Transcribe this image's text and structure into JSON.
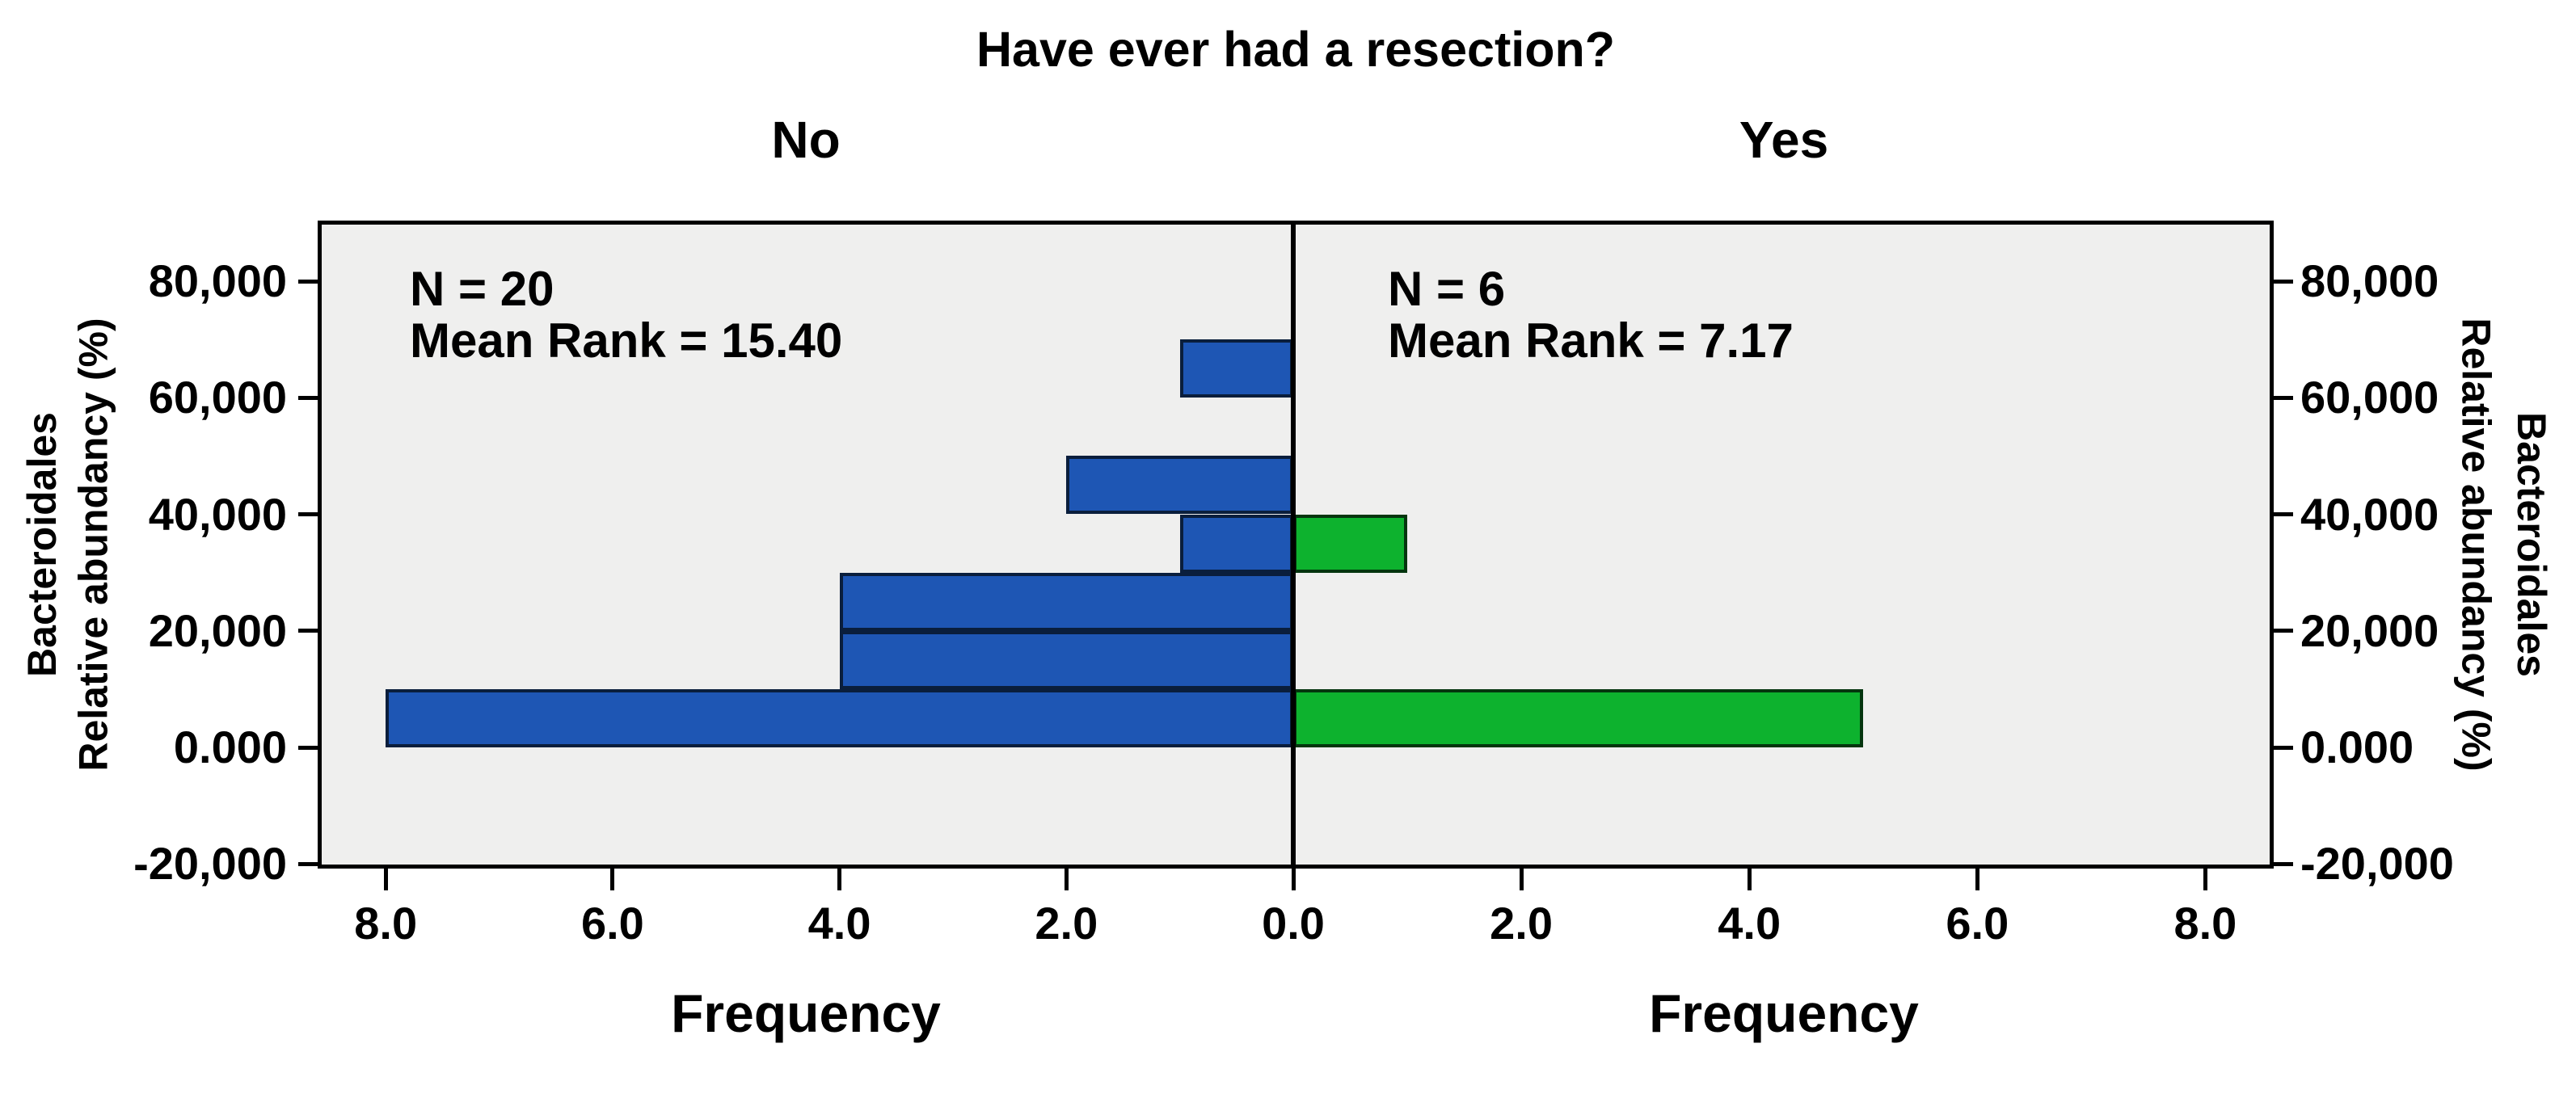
{
  "title": "Have ever had a resection?",
  "panels": {
    "left_header": "No",
    "right_header": "Yes"
  },
  "annotations": {
    "left": {
      "n": "N = 20",
      "mean_rank": "Mean Rank = 15.40"
    },
    "right": {
      "n": "N = 6",
      "mean_rank": "Mean Rank = 7.17"
    }
  },
  "axes": {
    "left_outer_title": "Bacteroidales",
    "left_inner_title": "Relative abundancy (%)",
    "right_inner_title": "Relative abundancy (%)",
    "right_outer_title": "Bacteroidales",
    "frequency_left": "Frequency",
    "frequency_right": "Frequency"
  },
  "colors": {
    "page_background": "#ffffff",
    "plot_background": "#efefee",
    "frame": "#000000",
    "no_bar_fill": "#1e56b4",
    "no_bar_border": "#0a1e3c",
    "yes_bar_fill": "#0db22e",
    "yes_bar_border": "#04350e"
  },
  "chart_data": {
    "type": "bar",
    "subtype": "back-to-back horizontal histogram",
    "title": "Have ever had a resection?",
    "legend_position": "none",
    "grid": false,
    "y_axis": {
      "label_line1": "Bacteroidales",
      "label_line2": "Relative abundancy (%)",
      "range": [
        -20800,
        90400
      ],
      "ticks": [
        {
          "value": 80000,
          "label": "80,000"
        },
        {
          "value": 60000,
          "label": "60,000"
        },
        {
          "value": 40000,
          "label": "40,000"
        },
        {
          "value": 20000,
          "label": "20,000"
        },
        {
          "value": 0,
          "label": "0.000"
        },
        {
          "value": -20000,
          "label": "-20,000"
        }
      ]
    },
    "x_axis": {
      "label": "Frequency",
      "max_per_panel": 8.6,
      "ticks": [
        {
          "side": "left",
          "value": 8,
          "label": "8.0"
        },
        {
          "side": "left",
          "value": 6,
          "label": "6.0"
        },
        {
          "side": "left",
          "value": 4,
          "label": "4.0"
        },
        {
          "side": "left",
          "value": 2,
          "label": "2.0"
        },
        {
          "side": "center",
          "value": 0,
          "label": "0.0"
        },
        {
          "side": "right",
          "value": 2,
          "label": "2.0"
        },
        {
          "side": "right",
          "value": 4,
          "label": "4.0"
        },
        {
          "side": "right",
          "value": 6,
          "label": "6.0"
        },
        {
          "side": "right",
          "value": 8,
          "label": "8.0"
        }
      ]
    },
    "series": [
      {
        "name": "No",
        "side": "left",
        "n": 20,
        "mean_rank": 15.4,
        "fill": "#1e56b4",
        "border": "#0a1e3c",
        "bars": [
          {
            "bin": [
              0,
              10000
            ],
            "frequency": 8
          },
          {
            "bin": [
              10000,
              20000
            ],
            "frequency": 4
          },
          {
            "bin": [
              20000,
              30000
            ],
            "frequency": 4
          },
          {
            "bin": [
              30000,
              40000
            ],
            "frequency": 1
          },
          {
            "bin": [
              40000,
              50000
            ],
            "frequency": 2
          },
          {
            "bin": [
              60000,
              70000
            ],
            "frequency": 1
          }
        ]
      },
      {
        "name": "Yes",
        "side": "right",
        "n": 6,
        "mean_rank": 7.17,
        "fill": "#0db22e",
        "border": "#04350e",
        "bars": [
          {
            "bin": [
              0,
              10000
            ],
            "frequency": 5
          },
          {
            "bin": [
              30000,
              40000
            ],
            "frequency": 1
          }
        ]
      }
    ]
  }
}
